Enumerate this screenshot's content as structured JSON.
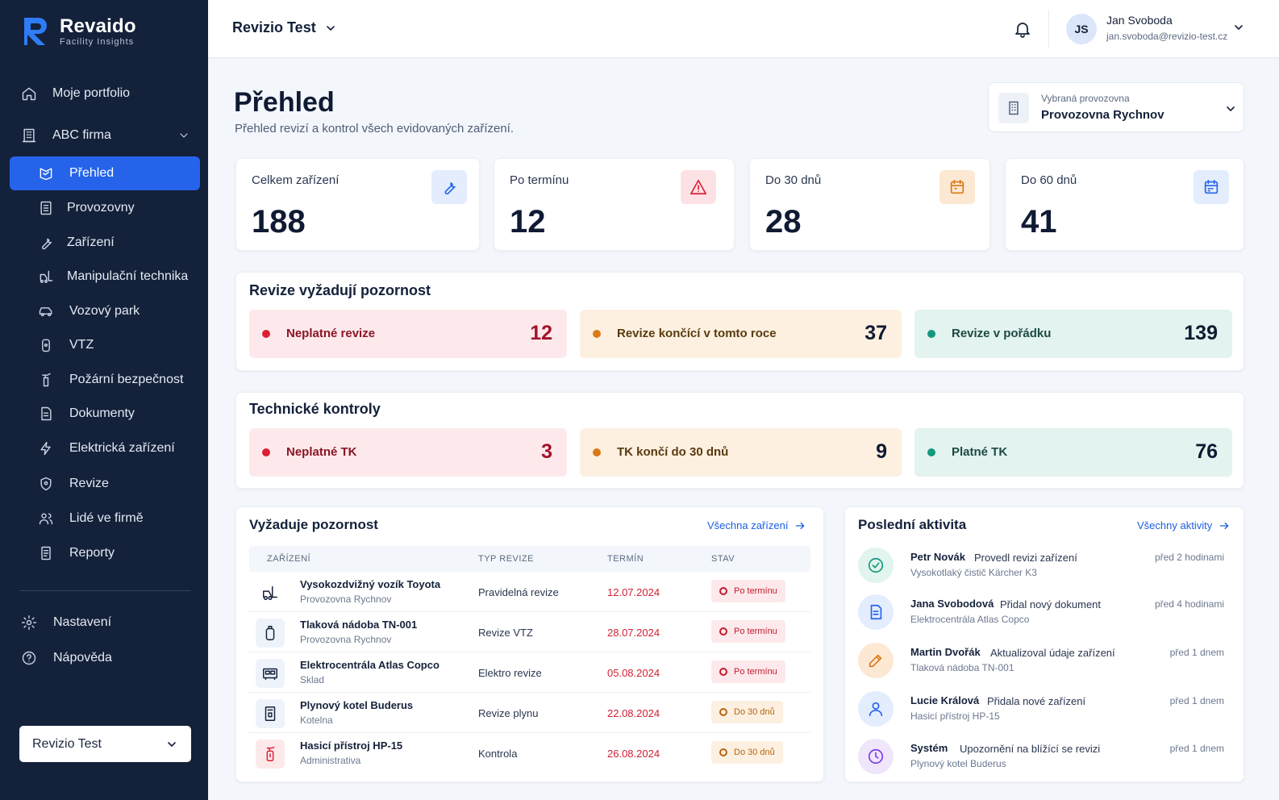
{
  "brand": {
    "name": "Revaido",
    "tagline": "Facility Insights"
  },
  "sidebar": {
    "items": [
      {
        "label": "Moje portfolio",
        "icon": "home-icon"
      },
      {
        "label": "ABC firma",
        "icon": "building-icon"
      },
      {
        "label": "Přehled",
        "icon": "dashboard-icon",
        "active": true
      },
      {
        "label": "Provozovny",
        "icon": "office-icon"
      },
      {
        "label": "Zařízení",
        "icon": "wrench-icon"
      },
      {
        "label": "Manipulační technika",
        "icon": "forklift-icon"
      },
      {
        "label": "Vozový park",
        "icon": "car-icon"
      },
      {
        "label": "VTZ",
        "icon": "cylinder-icon"
      },
      {
        "label": "Požární bezpečnost",
        "icon": "extinguisher-icon"
      },
      {
        "label": "Dokumenty",
        "icon": "document-icon"
      },
      {
        "label": "Elektrická zařízení",
        "icon": "lightning-icon"
      },
      {
        "label": "Revize",
        "icon": "shield-icon"
      },
      {
        "label": "Lidé ve firmě",
        "icon": "users-icon"
      },
      {
        "label": "Reporty",
        "icon": "report-icon"
      }
    ],
    "bottom": [
      {
        "label": "Nastavení",
        "icon": "gear-icon"
      },
      {
        "label": "Nápověda",
        "icon": "help-icon"
      }
    ],
    "org_select": "Revizio Test"
  },
  "topbar": {
    "project": "Revizio Test",
    "user": {
      "initials": "JS",
      "name": "Jan Svoboda",
      "email": "jan.svoboda@revizio-test.cz"
    }
  },
  "page": {
    "title": "Přehled",
    "subtitle": "Přehled revizí a kontrol všech evidovaných zařízení."
  },
  "site_select": {
    "label": "Vybraná provozovna",
    "value": "Provozovna Rychnov"
  },
  "stats": [
    {
      "label": "Celkem zařízení",
      "value": "188"
    },
    {
      "label": "Po termínu",
      "value": "12"
    },
    {
      "label": "Do 30 dnů",
      "value": "28"
    },
    {
      "label": "Do 60 dnů",
      "value": "41"
    }
  ],
  "revisions": {
    "title": "Revize vyžadují pozornost",
    "items": [
      {
        "label": "Neplatné revize",
        "value": "12"
      },
      {
        "label": "Revize končící v tomto roce",
        "value": "37"
      },
      {
        "label": "Revize v pořádku",
        "value": "139"
      }
    ]
  },
  "tech": {
    "title": "Technické kontroly",
    "items": [
      {
        "label": "Neplatné TK",
        "value": "3"
      },
      {
        "label": "TK končí do 30 dnů",
        "value": "9"
      },
      {
        "label": "Platné TK",
        "value": "76"
      }
    ]
  },
  "attention": {
    "title": "Vyžaduje pozornost",
    "link": "Všechna zařízení",
    "columns": [
      "ZAŘÍZENÍ",
      "TYP REVIZE",
      "TERMÍN",
      "STAV"
    ],
    "rows": [
      {
        "name": "Vysokozdvižný vozík Toyota",
        "site": "Provozovna Rychnov",
        "type": "Pravidelná revize",
        "date": "12.07.2024",
        "status": "Po termínu",
        "icon": "forklift-icon"
      },
      {
        "name": "Tlaková nádoba TN-001",
        "site": "Provozovna Rychnov",
        "type": "Revize VTZ",
        "date": "28.07.2024",
        "status": "Po termínu",
        "icon": "cylinder-icon"
      },
      {
        "name": "Elektrocentrála Atlas Copco",
        "site": "Sklad",
        "type": "Elektro revize",
        "date": "05.08.2024",
        "status": "Po termínu",
        "icon": "generator-icon"
      },
      {
        "name": "Plynový kotel Buderus",
        "site": "Kotelna",
        "type": "Revize plynu",
        "date": "22.08.2024",
        "status": "Do 30 dnů",
        "icon": "boiler-icon"
      },
      {
        "name": "Hasicí přístroj HP-15",
        "site": "Administrativa",
        "type": "Kontrola",
        "date": "26.08.2024",
        "status": "Do 30 dnů",
        "icon": "extinguisher-icon"
      }
    ]
  },
  "activity": {
    "title": "Poslední aktivita",
    "link": "Všechny aktivity",
    "items": [
      {
        "who": "Petr Novák",
        "action": "Provedl revizi zařízení",
        "detail": "Vysokotlaký čistič Kärcher K3",
        "time": "před 2 hodinami",
        "icon": "check-circle-icon"
      },
      {
        "who": "Jana Svobodová",
        "action": "Přidal nový dokument",
        "detail": "Elektrocentrála Atlas Copco",
        "time": "před 4 hodinami",
        "icon": "document-icon"
      },
      {
        "who": "Martin Dvořák",
        "action": "Aktualizoval údaje zařízení",
        "detail": "Tlaková nádoba TN-001",
        "time": "před 1 dnem",
        "icon": "pencil-icon"
      },
      {
        "who": "Lucie Králová",
        "action": "Přidala nové zařízení",
        "detail": "Hasicí přístroj HP-15",
        "time": "před 1 dnem",
        "icon": "user-icon"
      },
      {
        "who": "Systém",
        "action": "Upozornění na blížící se revizi",
        "detail": "Plynový kotel Buderus",
        "time": "před 1 dnem",
        "icon": "clock-icon"
      }
    ]
  },
  "colors": {
    "sidebar": "#14213a",
    "accent": "#2563eb",
    "danger": "#dc1f33",
    "warning": "#d97a16",
    "success": "#14987e"
  }
}
